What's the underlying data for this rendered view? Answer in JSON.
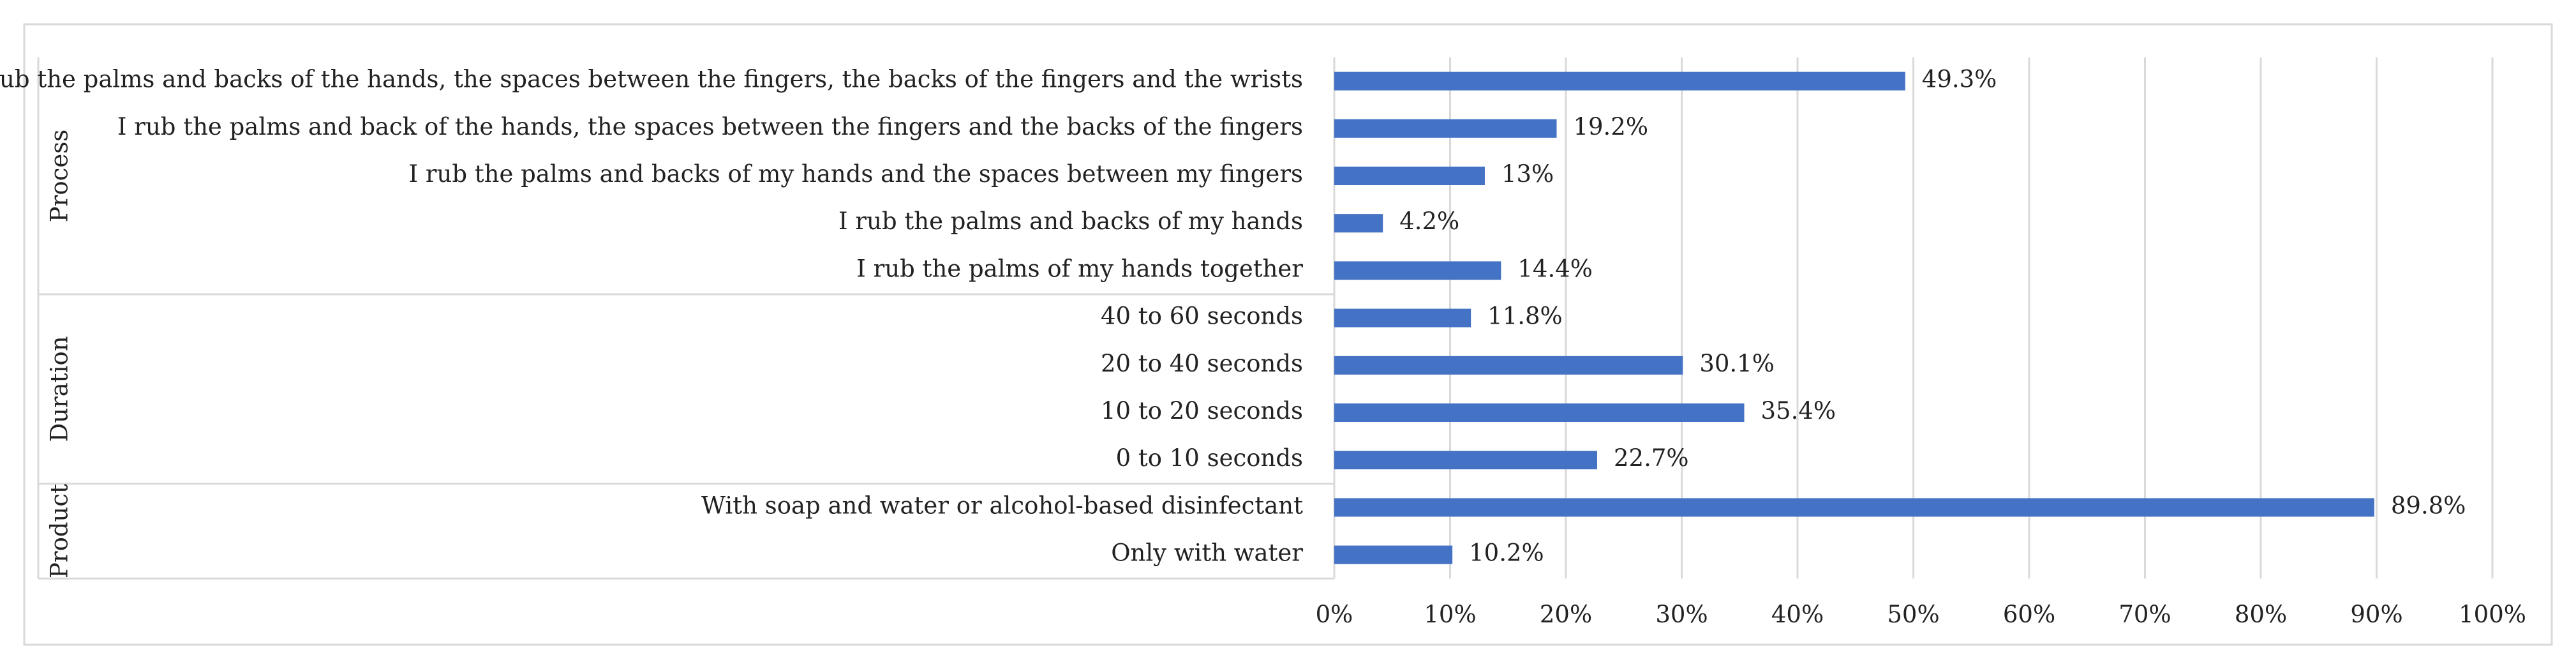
{
  "chart_data": {
    "type": "bar",
    "orientation": "horizontal",
    "groups": [
      {
        "name": "Process",
        "categories": [
          "I rub the palms and backs of the hands, the spaces between the fingers, the backs of the fingers and the wrists",
          "I rub the palms and back of the hands, the spaces between the fingers and the backs of the fingers",
          "I rub the palms and backs of my hands and the spaces between my fingers",
          "I rub the palms and backs of my hands",
          "I rub the palms of my hands together"
        ],
        "values": [
          49.3,
          19.2,
          13,
          4.2,
          14.4
        ],
        "labels": [
          "49.3%",
          "19.2%",
          "13%",
          "4.2%",
          "14.4%"
        ]
      },
      {
        "name": "Duration",
        "categories": [
          "40 to 60 seconds",
          "20 to 40 seconds",
          "10 to 20 seconds",
          "0 to 10 seconds"
        ],
        "values": [
          11.8,
          30.1,
          35.4,
          22.7
        ],
        "labels": [
          "11.8%",
          "30.1%",
          "35.4%",
          "22.7%"
        ]
      },
      {
        "name": "Product",
        "categories": [
          "With soap and water or alcohol-based disinfectant",
          "Only with water"
        ],
        "values": [
          89.8,
          10.2
        ],
        "labels": [
          "89.8%",
          "10.2%"
        ]
      }
    ],
    "x_ticks": [
      "0%",
      "10%",
      "20%",
      "30%",
      "40%",
      "50%",
      "60%",
      "70%",
      "80%",
      "90%",
      "100%"
    ],
    "xlim": [
      0,
      100
    ],
    "grid": true,
    "legend": "none",
    "title": "",
    "xlabel": "",
    "ylabel": "",
    "colors": {
      "bar": "#4472C4",
      "grid": "#d9d9d9",
      "border": "#d9d9d9",
      "text": "#222222"
    }
  }
}
